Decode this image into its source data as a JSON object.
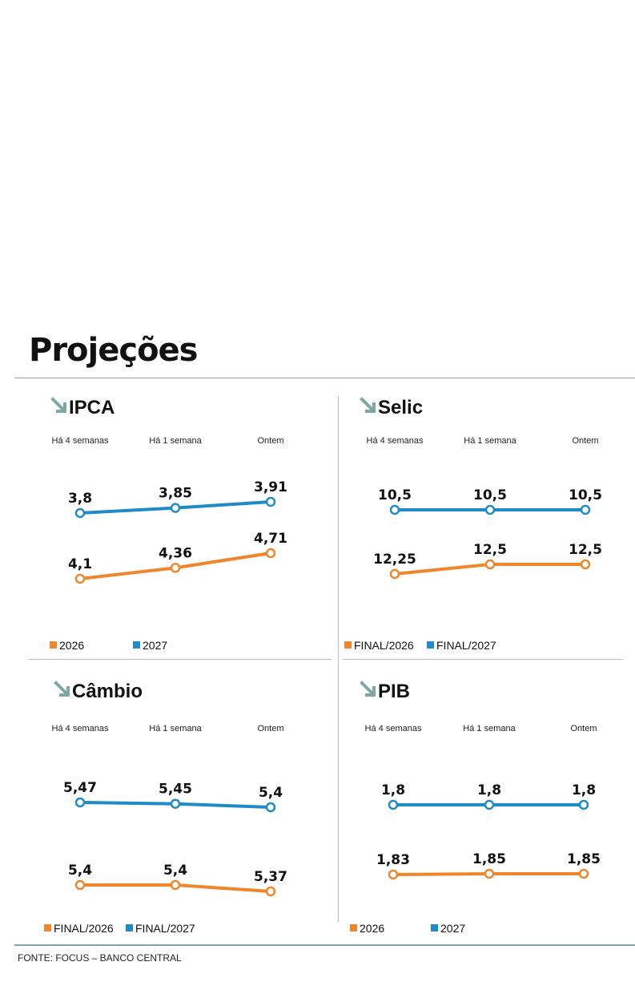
{
  "header": {
    "title": "Projeções"
  },
  "source": "FONTE: FOCUS – BANCO CENTRAL",
  "colors": {
    "orange": "#f0862c",
    "blue": "#1f8bc8",
    "icon": "#7fa8a2"
  },
  "chart_data": [
    {
      "type": "line",
      "title": "IPCA",
      "categories": [
        "Há 4 semanas",
        "Há 1 semana",
        "Ontem"
      ],
      "series": [
        {
          "name": "2026",
          "values": [
            "4,1",
            "4,36",
            "4,71"
          ],
          "color": "#f0862c"
        },
        {
          "name": "2027",
          "values": [
            "3,8",
            "3,85",
            "3,91"
          ],
          "color": "#1f8bc8"
        }
      ]
    },
    {
      "type": "line",
      "title": "Selic",
      "categories": [
        "Há 4 semanas",
        "Há 1 semana",
        "Ontem"
      ],
      "series": [
        {
          "name": "FINAL/2026",
          "values": [
            "12,25",
            "12,5",
            "12,5"
          ],
          "color": "#f0862c"
        },
        {
          "name": "FINAL/2027",
          "values": [
            "10,5",
            "10,5",
            "10,5"
          ],
          "color": "#1f8bc8"
        }
      ]
    },
    {
      "type": "line",
      "title": "Câmbio",
      "categories": [
        "Há 4 semanas",
        "Há 1 semana",
        "Ontem"
      ],
      "series": [
        {
          "name": "FINAL/2026",
          "values": [
            "5,4",
            "5,4",
            "5,37"
          ],
          "color": "#f0862c"
        },
        {
          "name": "FINAL/2027",
          "values": [
            "5,47",
            "5,45",
            "5,4"
          ],
          "color": "#1f8bc8"
        }
      ]
    },
    {
      "type": "line",
      "title": "PIB",
      "categories": [
        "Há 4 semanas",
        "Há 1 semana",
        "Ontem"
      ],
      "series": [
        {
          "name": "2026",
          "values": [
            "1,83",
            "1,85",
            "1,85"
          ],
          "color": "#f0862c"
        },
        {
          "name": "2027",
          "values": [
            "1,8",
            "1,8",
            "1,8"
          ],
          "color": "#1f8bc8"
        }
      ]
    }
  ]
}
